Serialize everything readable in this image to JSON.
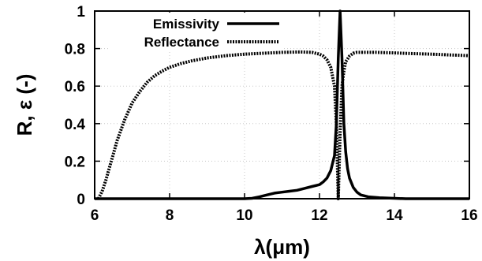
{
  "chart_data": {
    "type": "line",
    "xlabel": "λ(μm)",
    "ylabel": "R, ε (-)",
    "xlim": [
      6,
      16
    ],
    "ylim": [
      0,
      1
    ],
    "x_ticks": [
      6,
      8,
      10,
      12,
      14,
      16
    ],
    "y_ticks": [
      0,
      0.2,
      0.4,
      0.6,
      0.8,
      1
    ],
    "x_tick_labels": [
      "6",
      "8",
      "10",
      "12",
      "14",
      "16"
    ],
    "y_tick_labels": [
      "0",
      "0.2",
      "0.4",
      "0.6",
      "0.8",
      "1"
    ],
    "grid": true,
    "legend_position": "top-left",
    "series": [
      {
        "name": "Emissivity",
        "style": "solid",
        "color": "#000000",
        "x": [
          6.0,
          10.0,
          10.2,
          10.4,
          10.6,
          10.8,
          11.0,
          11.2,
          11.4,
          11.6,
          11.8,
          12.0,
          12.1,
          12.2,
          12.3,
          12.4,
          12.45,
          12.5,
          12.55,
          12.6,
          12.65,
          12.7,
          12.75,
          12.8,
          12.9,
          13.0,
          13.1,
          13.3,
          13.6,
          14.0,
          14.3,
          14.6,
          16.0
        ],
        "y": [
          0.0,
          0.0,
          0.002,
          0.01,
          0.02,
          0.03,
          0.035,
          0.04,
          0.045,
          0.055,
          0.065,
          0.075,
          0.09,
          0.11,
          0.15,
          0.23,
          0.4,
          0.75,
          1.0,
          0.75,
          0.4,
          0.25,
          0.16,
          0.11,
          0.06,
          0.035,
          0.02,
          0.01,
          0.005,
          0.002,
          0.0,
          0.0,
          0.0
        ]
      },
      {
        "name": "Reflectance",
        "style": "dotted",
        "color": "#000000",
        "x": [
          6.1,
          6.2,
          6.3,
          6.4,
          6.5,
          6.6,
          6.8,
          7.0,
          7.2,
          7.4,
          7.6,
          7.8,
          8.0,
          8.3,
          8.6,
          9.0,
          9.5,
          10.0,
          10.5,
          11.0,
          11.5,
          11.8,
          12.0,
          12.1,
          12.2,
          12.3,
          12.4,
          12.45,
          12.5,
          12.55,
          12.6,
          12.65,
          12.7,
          12.8,
          12.9,
          13.0,
          13.2,
          13.5,
          14.0,
          14.5,
          15.0,
          15.5,
          16.0
        ],
        "y": [
          0.0,
          0.04,
          0.1,
          0.17,
          0.24,
          0.31,
          0.42,
          0.51,
          0.57,
          0.62,
          0.655,
          0.68,
          0.7,
          0.72,
          0.735,
          0.75,
          0.762,
          0.77,
          0.775,
          0.78,
          0.782,
          0.78,
          0.77,
          0.76,
          0.74,
          0.7,
          0.6,
          0.4,
          0.0,
          0.35,
          0.6,
          0.68,
          0.73,
          0.76,
          0.775,
          0.78,
          0.78,
          0.78,
          0.777,
          0.773,
          0.77,
          0.766,
          0.762
        ]
      }
    ]
  }
}
